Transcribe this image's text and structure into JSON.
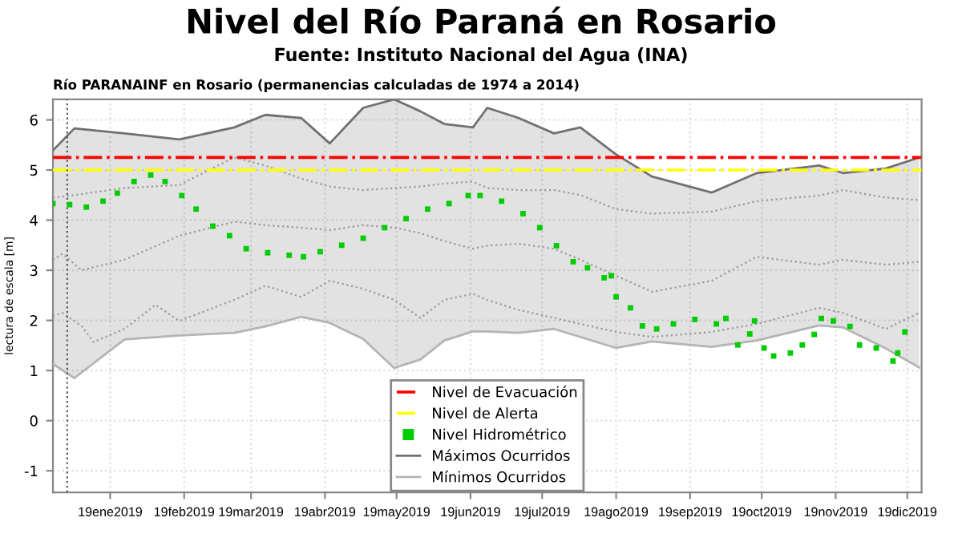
{
  "chart_data": {
    "type": "line",
    "title": "Nivel del Río Paraná en Rosario",
    "subtitle": "Fuente: Instituto Nacional del Agua (INA)",
    "annotations": [
      "Río PARANAINF en Rosario (permanencias calculadas de 1974 a 2014)"
    ],
    "ylabel": "lectura de escala [m]",
    "xlim": [
      "2018-12-26",
      "2019-12-25"
    ],
    "xticks": [
      {
        "value": "2019-01-19",
        "label": "19ene2019"
      },
      {
        "value": "2019-02-19",
        "label": "19feb2019"
      },
      {
        "value": "2019-03-19",
        "label": "19mar2019"
      },
      {
        "value": "2019-04-19",
        "label": "19abr2019"
      },
      {
        "value": "2019-05-19",
        "label": "19may2019"
      },
      {
        "value": "2019-06-19",
        "label": "19jun2019"
      },
      {
        "value": "2019-07-19",
        "label": "19jul2019"
      },
      {
        "value": "2019-08-19",
        "label": "19ago2019"
      },
      {
        "value": "2019-09-19",
        "label": "19sep2019"
      },
      {
        "value": "2019-10-19",
        "label": "19oct2019"
      },
      {
        "value": "2019-11-19",
        "label": "19nov2019"
      },
      {
        "value": "2019-12-19",
        "label": "19dic2019"
      }
    ],
    "ylim": [
      -1.43,
      6.41
    ],
    "yticks": [
      -1,
      0,
      1,
      2,
      3,
      4,
      5,
      6
    ],
    "grid": true,
    "legend": "bottom",
    "ref_lines": [
      {
        "axis": "y",
        "value": 5.25,
        "label": "Nivel de Evacuación",
        "color": "#ff0000",
        "line_style": "dashed"
      },
      {
        "axis": "y",
        "value": 5.0,
        "label": "Nivel de Alerta",
        "color": "#ffff00",
        "line_style": "dashed"
      },
      {
        "axis": "x",
        "value": "2019-01-01",
        "color": "#555555",
        "line_style": "dotted"
      }
    ],
    "series": [
      {
        "color": "#999999",
        "line_style": "dotted",
        "x": [
          "2018-12-26",
          "2019-01-04",
          "2019-01-25",
          "2019-02-17",
          "2019-03-12",
          "2019-03-25",
          "2019-04-09",
          "2019-04-21",
          "2019-05-05",
          "2019-05-18",
          "2019-05-29",
          "2019-06-08",
          "2019-06-20",
          "2019-06-26",
          "2019-07-09",
          "2019-07-24",
          "2019-08-04",
          "2019-08-19",
          "2019-09-03",
          "2019-09-28",
          "2019-10-17",
          "2019-11-12",
          "2019-11-22",
          "2019-12-10",
          "2019-12-24"
        ],
        "values": [
          4.45,
          4.5,
          4.64,
          4.7,
          5.25,
          5.09,
          4.83,
          4.67,
          4.6,
          4.64,
          4.67,
          4.73,
          4.77,
          4.64,
          4.6,
          4.6,
          4.5,
          4.22,
          4.13,
          4.17,
          4.38,
          4.49,
          4.6,
          4.45,
          4.4
        ]
      },
      {
        "color": "#999999",
        "line_style": "dotted",
        "x": [
          "2018-12-26",
          "2018-12-30",
          "2019-01-07",
          "2019-01-25",
          "2019-02-17",
          "2019-03-12",
          "2019-03-25",
          "2019-04-09",
          "2019-04-21",
          "2019-05-05",
          "2019-05-18",
          "2019-05-29",
          "2019-06-08",
          "2019-06-20",
          "2019-06-26",
          "2019-07-09",
          "2019-07-24",
          "2019-08-04",
          "2019-08-19",
          "2019-09-03",
          "2019-09-28",
          "2019-10-17",
          "2019-11-12",
          "2019-11-22",
          "2019-12-10",
          "2019-12-24"
        ],
        "values": [
          3.21,
          3.33,
          3.0,
          3.21,
          3.69,
          3.97,
          3.9,
          3.85,
          3.8,
          3.9,
          3.85,
          3.74,
          3.58,
          3.43,
          3.49,
          3.53,
          3.43,
          3.21,
          2.89,
          2.57,
          2.79,
          3.27,
          3.11,
          3.21,
          3.11,
          3.17
        ]
      },
      {
        "color": "#999999",
        "line_style": "dotted",
        "x": [
          "2018-12-26",
          "2018-12-30",
          "2019-01-07",
          "2019-01-12",
          "2019-01-25",
          "2019-02-07",
          "2019-02-17",
          "2019-03-12",
          "2019-03-25",
          "2019-04-09",
          "2019-04-21",
          "2019-05-05",
          "2019-05-18",
          "2019-05-29",
          "2019-06-08",
          "2019-06-20",
          "2019-06-26",
          "2019-07-09",
          "2019-07-24",
          "2019-08-04",
          "2019-08-19",
          "2019-09-03",
          "2019-09-28",
          "2019-10-17",
          "2019-11-12",
          "2019-11-22",
          "2019-12-10",
          "2019-12-24"
        ],
        "values": [
          2.09,
          2.15,
          1.89,
          1.57,
          1.83,
          2.31,
          1.99,
          2.41,
          2.69,
          2.47,
          2.79,
          2.63,
          2.41,
          2.05,
          2.41,
          2.53,
          2.41,
          2.21,
          2.05,
          1.93,
          1.77,
          1.67,
          1.77,
          1.93,
          2.25,
          2.15,
          1.83,
          2.15
        ]
      },
      {
        "name": "Máximos Ocurridos",
        "color": "#707070",
        "x": [
          "2018-12-26",
          "2019-01-04",
          "2019-01-25",
          "2019-02-17",
          "2019-03-12",
          "2019-03-25",
          "2019-04-09",
          "2019-04-21",
          "2019-05-05",
          "2019-05-18",
          "2019-05-29",
          "2019-06-08",
          "2019-06-20",
          "2019-06-26",
          "2019-07-09",
          "2019-07-24",
          "2019-08-04",
          "2019-08-19",
          "2019-09-03",
          "2019-09-28",
          "2019-10-17",
          "2019-11-12",
          "2019-11-22",
          "2019-12-10",
          "2019-12-24"
        ],
        "values": [
          5.39,
          5.83,
          5.73,
          5.61,
          5.85,
          6.1,
          6.04,
          5.53,
          6.24,
          6.41,
          6.17,
          5.92,
          5.85,
          6.24,
          6.04,
          5.73,
          5.85,
          5.31,
          4.87,
          4.55,
          4.94,
          5.09,
          4.94,
          5.03,
          5.25
        ],
        "lower": [
          1.13,
          0.85,
          1.62,
          1.7,
          1.75,
          1.88,
          2.07,
          1.95,
          1.63,
          1.05,
          1.22,
          1.6,
          1.78,
          1.78,
          1.75,
          1.83,
          1.67,
          1.45,
          1.58,
          1.47,
          1.6,
          1.9,
          1.86,
          1.44,
          1.06
        ],
        "upper": [
          5.39,
          5.83,
          5.73,
          5.61,
          5.85,
          6.1,
          6.04,
          5.53,
          6.24,
          6.41,
          6.17,
          5.92,
          5.85,
          6.24,
          6.04,
          5.73,
          5.85,
          5.31,
          4.87,
          4.55,
          4.94,
          5.09,
          4.94,
          5.03,
          5.25
        ]
      },
      {
        "name": "Mínimos Ocurridos",
        "color": "#b4b4b4",
        "x": [
          "2018-12-26",
          "2019-01-04",
          "2019-01-25",
          "2019-02-17",
          "2019-03-12",
          "2019-03-25",
          "2019-04-09",
          "2019-04-21",
          "2019-05-05",
          "2019-05-18",
          "2019-05-29",
          "2019-06-08",
          "2019-06-20",
          "2019-06-26",
          "2019-07-09",
          "2019-07-24",
          "2019-08-04",
          "2019-08-19",
          "2019-09-03",
          "2019-09-28",
          "2019-10-17",
          "2019-11-12",
          "2019-11-22",
          "2019-12-10",
          "2019-12-24"
        ],
        "values": [
          1.13,
          0.85,
          1.62,
          1.7,
          1.75,
          1.88,
          2.07,
          1.95,
          1.63,
          1.05,
          1.22,
          1.6,
          1.78,
          1.78,
          1.75,
          1.83,
          1.67,
          1.45,
          1.58,
          1.47,
          1.6,
          1.9,
          1.86,
          1.44,
          1.06
        ]
      },
      {
        "type": "scatter",
        "name": "Nivel Hidrométrico",
        "color": "#00cc00",
        "marker": "square",
        "x": [
          "2018-12-26",
          "2019-01-02",
          "2019-01-09",
          "2019-01-16",
          "2019-01-22",
          "2019-01-29",
          "2019-02-05",
          "2019-02-11",
          "2019-02-18",
          "2019-02-24",
          "2019-03-03",
          "2019-03-10",
          "2019-03-17",
          "2019-03-26",
          "2019-04-04",
          "2019-04-10",
          "2019-04-17",
          "2019-04-26",
          "2019-05-05",
          "2019-05-14",
          "2019-05-23",
          "2019-06-01",
          "2019-06-10",
          "2019-06-18",
          "2019-06-23",
          "2019-07-02",
          "2019-07-11",
          "2019-07-18",
          "2019-07-25",
          "2019-08-01",
          "2019-08-07",
          "2019-08-14",
          "2019-08-17",
          "2019-08-19",
          "2019-08-25",
          "2019-08-30",
          "2019-09-05",
          "2019-09-12",
          "2019-09-21",
          "2019-09-30",
          "2019-10-04",
          "2019-10-09",
          "2019-10-14",
          "2019-10-16",
          "2019-10-20",
          "2019-10-24",
          "2019-10-31",
          "2019-11-05",
          "2019-11-10",
          "2019-11-13",
          "2019-11-18",
          "2019-11-25",
          "2019-11-29",
          "2019-12-06",
          "2019-12-13",
          "2019-12-15",
          "2019-12-18"
        ],
        "values": [
          4.33,
          4.31,
          4.26,
          4.38,
          4.54,
          4.77,
          4.9,
          4.77,
          4.49,
          4.22,
          3.88,
          3.69,
          3.43,
          3.35,
          3.3,
          3.27,
          3.37,
          3.5,
          3.64,
          3.85,
          4.03,
          4.22,
          4.33,
          4.49,
          4.49,
          4.38,
          4.13,
          3.85,
          3.49,
          3.17,
          3.05,
          2.85,
          2.89,
          2.47,
          2.25,
          1.89,
          1.83,
          1.93,
          2.02,
          1.93,
          2.04,
          1.51,
          1.73,
          1.99,
          1.45,
          1.29,
          1.35,
          1.51,
          1.72,
          2.04,
          1.99,
          1.88,
          1.51,
          1.45,
          1.19,
          1.35,
          1.77
        ]
      }
    ]
  }
}
